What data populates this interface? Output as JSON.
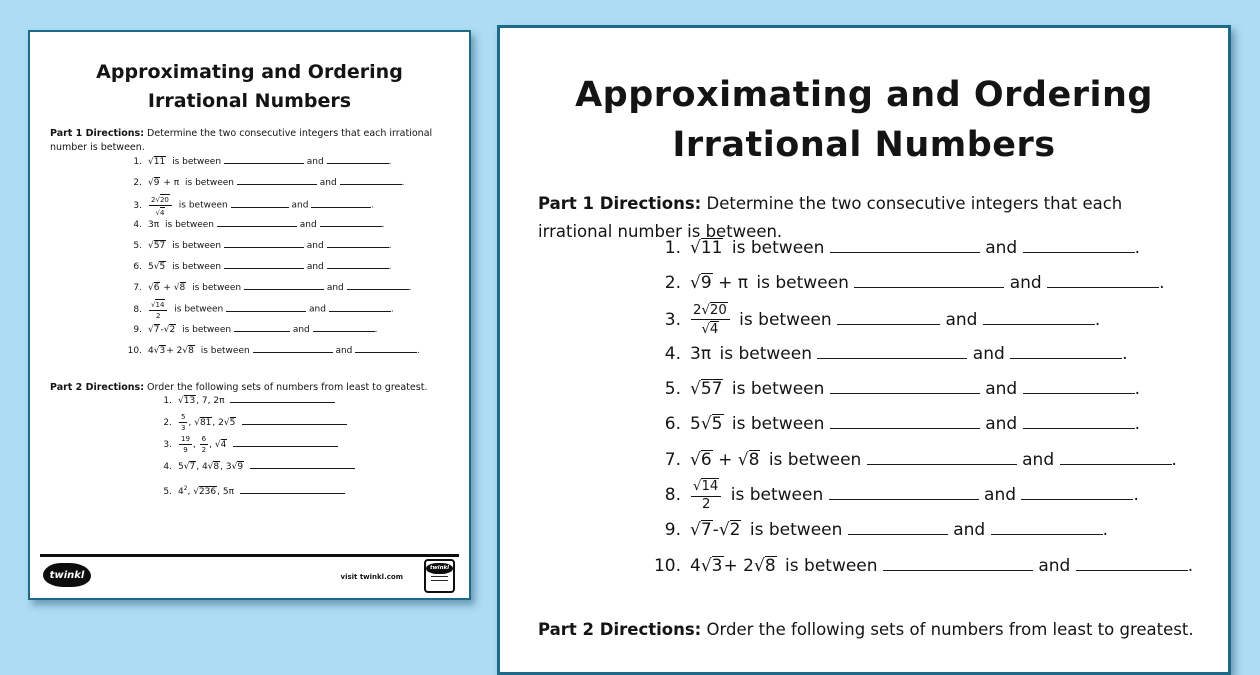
{
  "colors": {
    "background": "#addcf4",
    "page_border": "#1d6a88",
    "text": "#141414"
  },
  "labels": {
    "title_line1": "Approximating and Ordering",
    "title_line2": "Irrational Numbers",
    "part1_label": "Part 1 Directions:",
    "part1_text": "Determine the two consecutive integers that each irrational number is between.",
    "part2_label": "Part 2 Directions:",
    "part2_text": "Order the following sets of numbers from least to greatest.",
    "is_between": "is between",
    "and": "and",
    "period": "."
  },
  "part1_items": [
    {
      "num": "1.",
      "expr": [
        {
          "sqrt": [
            "11"
          ]
        }
      ]
    },
    {
      "num": "2.",
      "expr": [
        {
          "sqrt": [
            "9"
          ]
        },
        " + π"
      ]
    },
    {
      "num": "3.",
      "expr": [
        {
          "frac": [
            [
              "2",
              {
                "sqrt": [
                  "20"
                ]
              }
            ],
            [
              {
                "sqrt": [
                  "4"
                ]
              }
            ]
          ]
        }
      ]
    },
    {
      "num": "4.",
      "expr": [
        "3π"
      ]
    },
    {
      "num": "5.",
      "expr": [
        {
          "sqrt": [
            "57"
          ]
        }
      ]
    },
    {
      "num": "6.",
      "expr": [
        "5",
        {
          "sqrt": [
            "5"
          ]
        }
      ]
    },
    {
      "num": "7.",
      "expr": [
        {
          "sqrt": [
            "6"
          ]
        },
        " + ",
        {
          "sqrt": [
            "8"
          ]
        }
      ]
    },
    {
      "num": "8.",
      "expr": [
        {
          "frac": [
            [
              {
                "sqrt": [
                  "14"
                ]
              }
            ],
            [
              "2"
            ]
          ]
        }
      ]
    },
    {
      "num": "9.",
      "expr": [
        {
          "sqrt": [
            "7"
          ]
        },
        "-",
        {
          "sqrt": [
            "2"
          ]
        }
      ]
    },
    {
      "num": "10.",
      "expr": [
        "4",
        {
          "sqrt": [
            "3"
          ]
        },
        "+ 2",
        {
          "sqrt": [
            "8"
          ]
        }
      ]
    }
  ],
  "part2_items": [
    {
      "num": "1.",
      "expr": [
        {
          "sqrt": [
            "13"
          ]
        },
        ", 7, 2π"
      ]
    },
    {
      "num": "2.",
      "expr": [
        {
          "frac": [
            [
              "5"
            ],
            [
              "3"
            ]
          ]
        },
        ", ",
        {
          "sqrt": [
            "81"
          ]
        },
        ", 2",
        {
          "sqrt": [
            "5"
          ]
        }
      ]
    },
    {
      "num": "3.",
      "expr": [
        {
          "frac": [
            [
              "19"
            ],
            [
              "9"
            ]
          ]
        },
        ", ",
        {
          "frac": [
            [
              "6"
            ],
            [
              "2"
            ]
          ]
        },
        ", ",
        {
          "sqrt": [
            "4"
          ]
        }
      ]
    },
    {
      "num": "4.",
      "expr": [
        "5",
        {
          "sqrt": [
            "7"
          ]
        },
        ", 4",
        {
          "sqrt": [
            "8"
          ]
        },
        ", 3",
        {
          "sqrt": [
            "9"
          ]
        }
      ]
    },
    {
      "num": "5.",
      "expr": [
        "4",
        {
          "sup": "2"
        },
        ", ",
        {
          "sqrt": [
            "236"
          ]
        },
        ", 5π"
      ]
    }
  ],
  "footer": {
    "logo_text": "twinkl",
    "visit_text": "visit twinkl.com",
    "badge_text": "twinkl"
  }
}
